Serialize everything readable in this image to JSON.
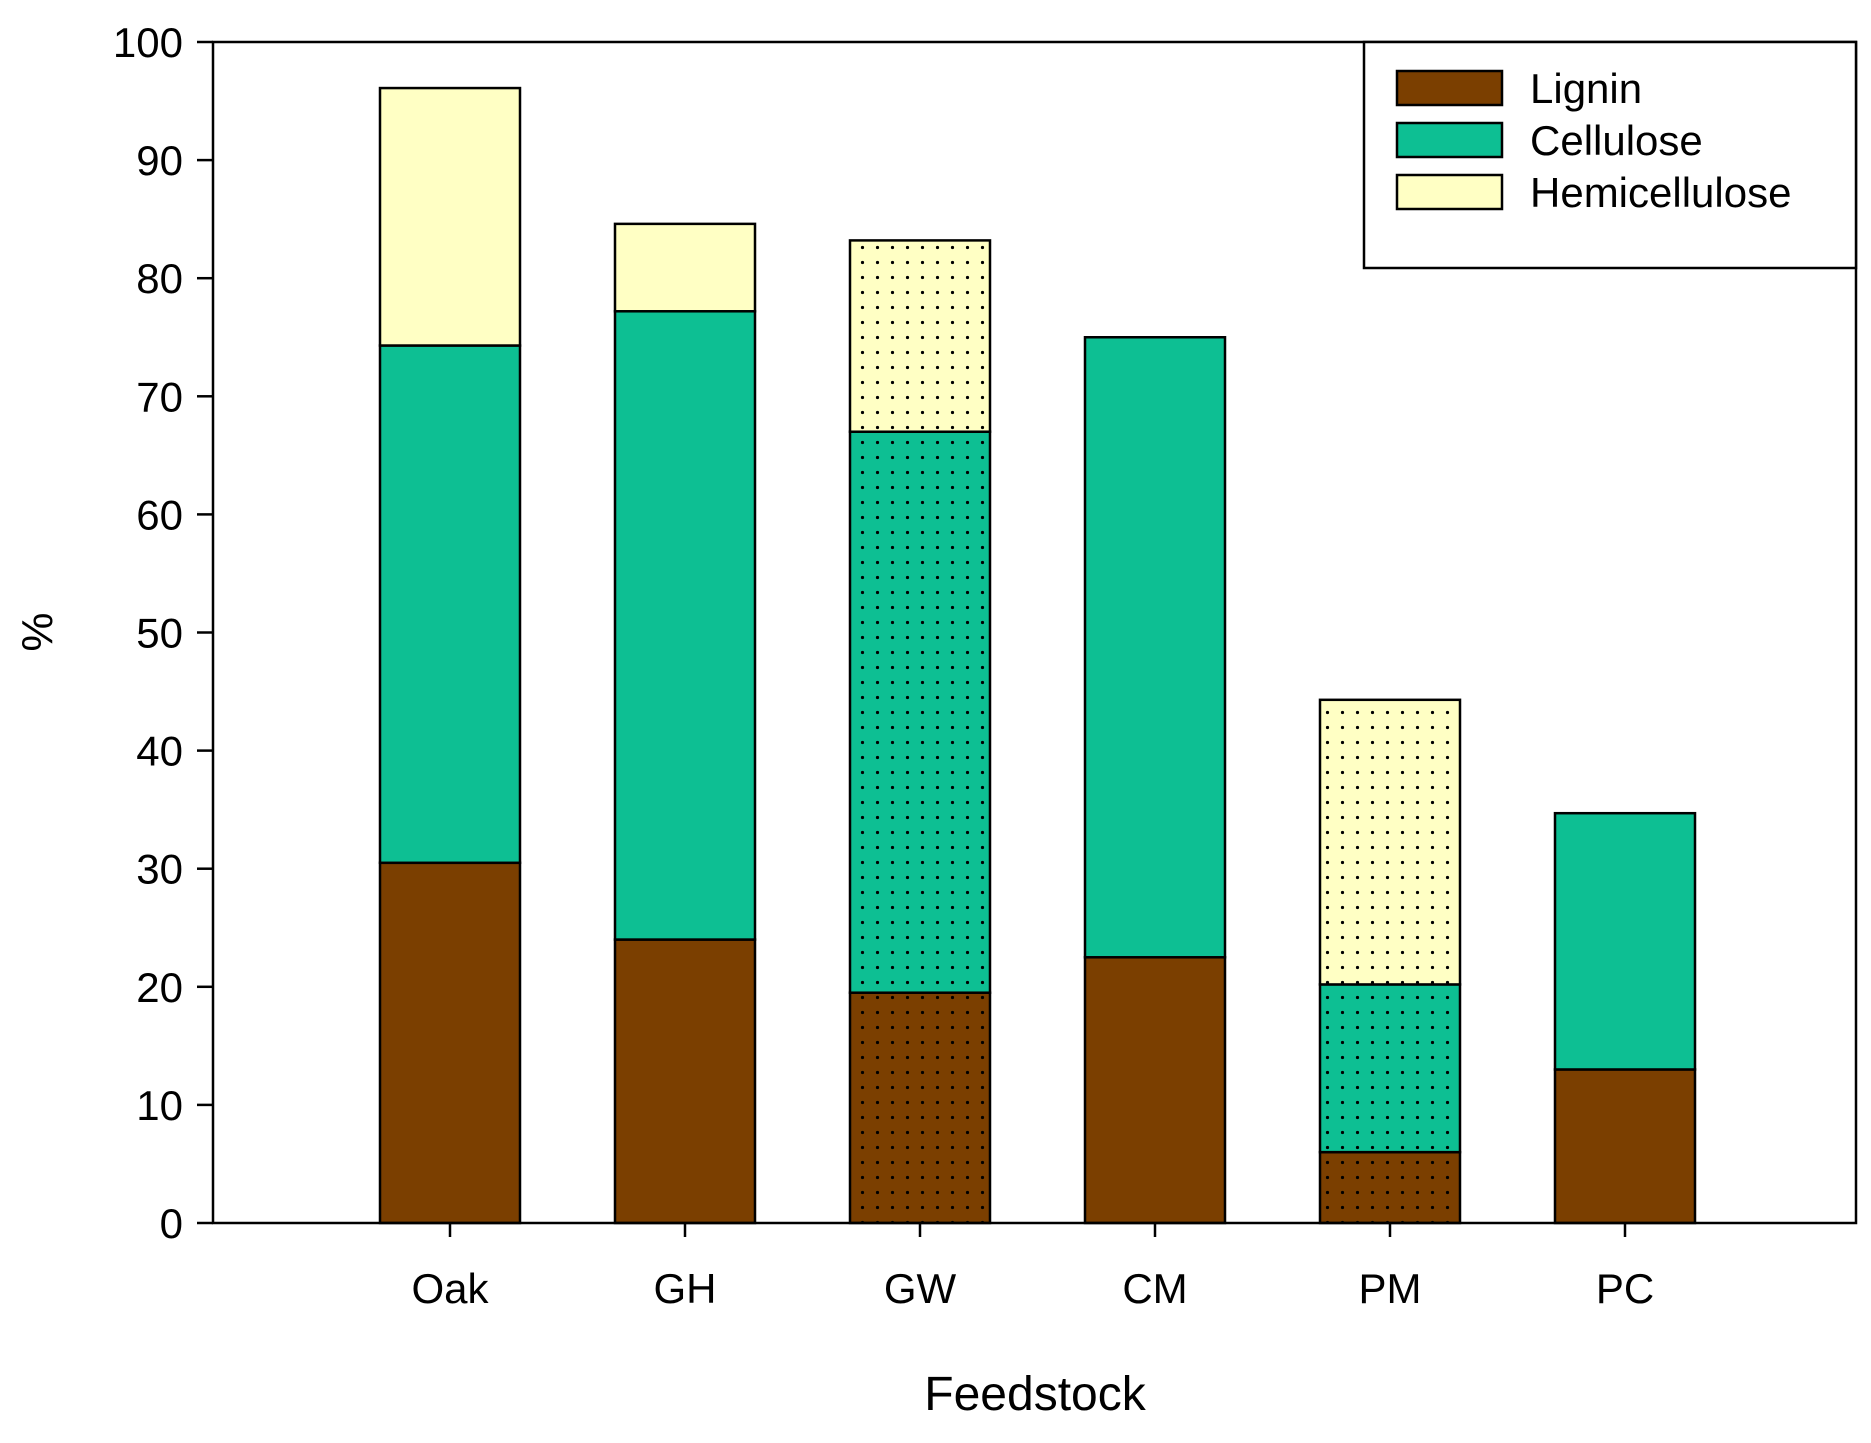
{
  "chart_data": {
    "type": "bar",
    "stacked": true,
    "title": "",
    "xlabel": "Feedstock",
    "ylabel": "%",
    "ylim": [
      0,
      100
    ],
    "yticks": [
      "0",
      "10",
      "20",
      "30",
      "40",
      "50",
      "60",
      "70",
      "80",
      "90",
      "100"
    ],
    "categories": [
      "Oak",
      "GH",
      "GW",
      "CM",
      "PM",
      "PC"
    ],
    "dotted_categories": [
      "GW",
      "PM"
    ],
    "legend_position": "top-right",
    "series": [
      {
        "name": "Lignin",
        "color": "#7b3f00",
        "values": [
          30.5,
          24,
          19.5,
          22.5,
          6,
          13
        ]
      },
      {
        "name": "Cellulose",
        "color": "#0dbf93",
        "values": [
          43.8,
          53.2,
          47.5,
          52.5,
          14.2,
          21.7
        ]
      },
      {
        "name": "Hemicellulose",
        "color": "#ffffc4",
        "values": [
          21.8,
          7.4,
          16.2,
          0,
          24.1,
          0
        ]
      }
    ]
  }
}
